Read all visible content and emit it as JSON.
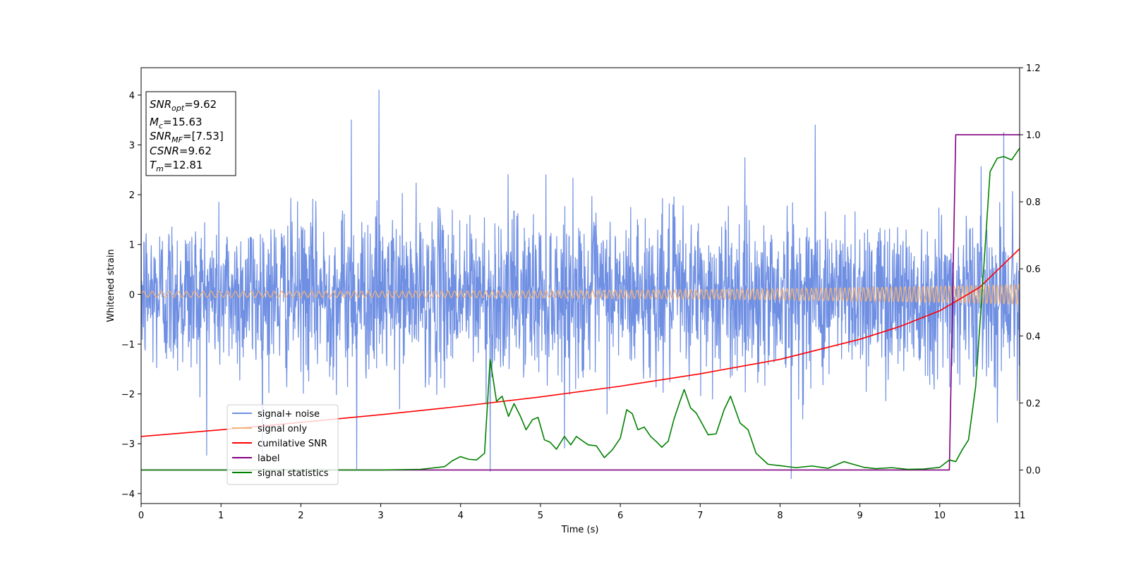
{
  "chart_data": {
    "type": "line",
    "xlabel": "Time (s)",
    "ylabel": "Whitened strain",
    "xlim": [
      0,
      11
    ],
    "ylim_left": [
      -4.2,
      4.55
    ],
    "ylim_right": [
      -0.1,
      1.2
    ],
    "x_ticks": [
      0,
      1,
      2,
      3,
      4,
      5,
      6,
      7,
      8,
      9,
      10,
      11
    ],
    "y_ticks_left": [
      -4,
      -3,
      -2,
      -1,
      0,
      1,
      2,
      3,
      4
    ],
    "y_ticks_left_labels": [
      "−4",
      "−3",
      "−2",
      "−1",
      "0",
      "1",
      "2",
      "3",
      "4"
    ],
    "y_ticks_right": [
      0.0,
      0.2,
      0.4,
      0.6,
      0.8,
      1.0,
      1.2
    ],
    "y_ticks_right_labels": [
      "0.0",
      "0.2",
      "0.4",
      "0.6",
      "0.8",
      "1.0",
      "1.2"
    ],
    "legend": {
      "placement": "lower-left",
      "entries": [
        {
          "label": "signal+ noise",
          "color": "#6f8fe3"
        },
        {
          "label": "signal only",
          "color": "#f2b27a"
        },
        {
          "label": "cumilative SNR",
          "color": "#ff0000"
        },
        {
          "label": "label",
          "color": "#800080"
        },
        {
          "label": "signal statistics",
          "color": "#008000"
        }
      ]
    },
    "annotation": {
      "lines": [
        {
          "sym": "SNR",
          "sub": "opt",
          "rest": "=9.62"
        },
        {
          "sym": "M",
          "sub": "c",
          "rest": "=15.63"
        },
        {
          "sym": "SNR",
          "sub": "MF",
          "rest": "=[7.53]"
        },
        {
          "sym": "CSNR",
          "sub": "",
          "rest": "=9.62"
        },
        {
          "sym": "T",
          "sub": "m",
          "rest": "=12.81"
        }
      ]
    },
    "series": [
      {
        "name": "signal+ noise",
        "axis": "left",
        "color": "#6f8fe3",
        "kind": "noise",
        "amplitude_sigma": 0.8,
        "peak_spikes": [
          {
            "x": 2.63,
            "y": 3.5
          },
          {
            "x": 2.98,
            "y": 4.1
          },
          {
            "x": 8.44,
            "y": 3.4
          },
          {
            "x": 10.8,
            "y": 3.25
          },
          {
            "x": 4.37,
            "y": -3.55
          },
          {
            "x": 8.14,
            "y": -3.7
          },
          {
            "x": 2.7,
            "y": -3.5
          }
        ]
      },
      {
        "name": "signal only",
        "axis": "left",
        "color": "#f2b27a",
        "kind": "chirp",
        "amplitude_start": 0.06,
        "amplitude_end": 0.2
      },
      {
        "name": "cumilative SNR",
        "axis": "right",
        "color": "#ff0000",
        "x": [
          0,
          1,
          2,
          3,
          4,
          5,
          6,
          7,
          8,
          9,
          9.5,
          10,
          10.5,
          11
        ],
        "y": [
          0.1,
          0.12,
          0.142,
          0.165,
          0.19,
          0.218,
          0.25,
          0.287,
          0.33,
          0.39,
          0.428,
          0.475,
          0.545,
          0.66
        ]
      },
      {
        "name": "label",
        "axis": "right",
        "color": "#800080",
        "x": [
          0,
          10.12,
          10.2,
          11
        ],
        "y": [
          0.0,
          0.0,
          1.0,
          1.0
        ]
      },
      {
        "name": "signal statistics",
        "axis": "right",
        "color": "#008000",
        "x": [
          0,
          0.5,
          1,
          2,
          3,
          3.5,
          3.8,
          3.9,
          4.0,
          4.1,
          4.2,
          4.3,
          4.37,
          4.45,
          4.52,
          4.6,
          4.67,
          4.75,
          4.82,
          4.9,
          4.97,
          5.05,
          5.12,
          5.2,
          5.3,
          5.38,
          5.45,
          5.52,
          5.6,
          5.7,
          5.8,
          5.9,
          6.0,
          6.08,
          6.15,
          6.22,
          6.3,
          6.38,
          6.45,
          6.52,
          6.6,
          6.67,
          6.74,
          6.8,
          6.88,
          6.95,
          7.02,
          7.1,
          7.2,
          7.3,
          7.38,
          7.5,
          7.6,
          7.7,
          7.85,
          8.0,
          8.2,
          8.4,
          8.6,
          8.8,
          8.9,
          9.05,
          9.2,
          9.4,
          9.6,
          9.8,
          10.0,
          10.12,
          10.2,
          10.28,
          10.36,
          10.45,
          10.55,
          10.63,
          10.72,
          10.8,
          10.9,
          11.0
        ],
        "y": [
          0.0,
          0.0,
          0.0,
          0.0,
          0.0,
          0.002,
          0.01,
          0.028,
          0.04,
          0.032,
          0.03,
          0.05,
          0.33,
          0.205,
          0.22,
          0.16,
          0.198,
          0.16,
          0.12,
          0.15,
          0.157,
          0.09,
          0.083,
          0.062,
          0.1,
          0.075,
          0.1,
          0.088,
          0.075,
          0.072,
          0.037,
          0.06,
          0.095,
          0.18,
          0.168,
          0.12,
          0.128,
          0.1,
          0.085,
          0.068,
          0.086,
          0.15,
          0.2,
          0.24,
          0.185,
          0.17,
          0.14,
          0.105,
          0.108,
          0.18,
          0.22,
          0.14,
          0.12,
          0.05,
          0.017,
          0.013,
          0.007,
          0.012,
          0.005,
          0.025,
          0.018,
          0.008,
          0.004,
          0.007,
          0.002,
          0.003,
          0.008,
          0.03,
          0.025,
          0.06,
          0.09,
          0.25,
          0.6,
          0.89,
          0.93,
          0.935,
          0.925,
          0.96
        ]
      }
    ]
  }
}
